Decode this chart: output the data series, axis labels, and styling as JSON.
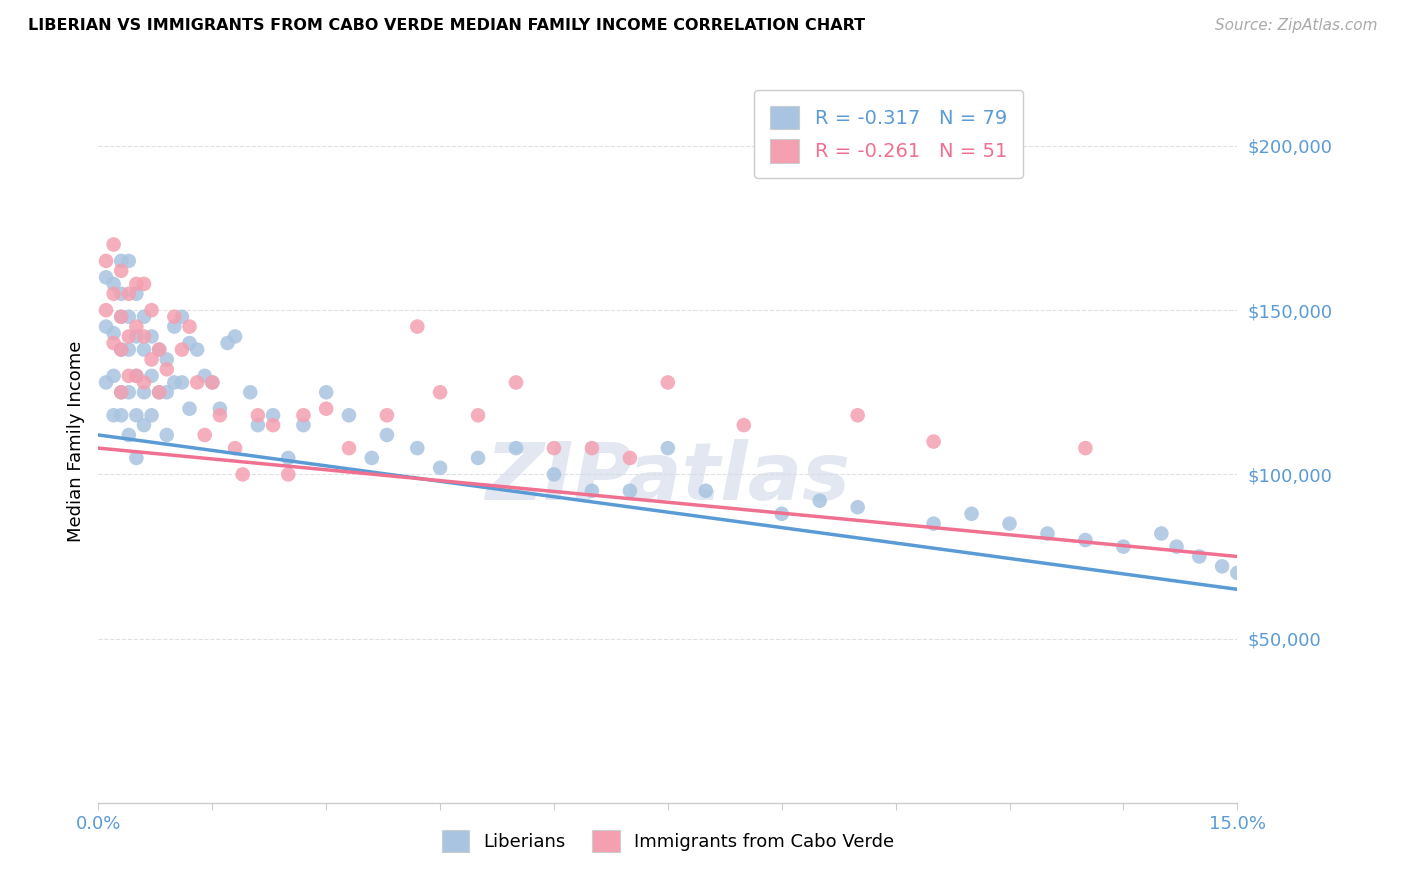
{
  "title": "LIBERIAN VS IMMIGRANTS FROM CABO VERDE MEDIAN FAMILY INCOME CORRELATION CHART",
  "source": "Source: ZipAtlas.com",
  "ylabel": "Median Family Income",
  "xlim": [
    0.0,
    0.15
  ],
  "ylim": [
    0,
    220000
  ],
  "yticks": [
    50000,
    100000,
    150000,
    200000
  ],
  "ytick_labels": [
    "$50,000",
    "$100,000",
    "$150,000",
    "$200,000"
  ],
  "xticks": [
    0.0,
    0.015,
    0.03,
    0.045,
    0.06,
    0.075,
    0.09,
    0.105,
    0.12,
    0.135,
    0.15
  ],
  "xtick_labels": [
    "0.0%",
    "",
    "",
    "",
    "",
    "",
    "",
    "",
    "",
    "",
    "15.0%"
  ],
  "background_color": "#ffffff",
  "grid_color": "#e0e0e0",
  "blue_line_color": "#5b9bd5",
  "pink_line_color": "#f07090",
  "blue_dot_color": "#a8c4e0",
  "pink_dot_color": "#f4a0b0",
  "R_blue": -0.317,
  "N_blue": 79,
  "R_pink": -0.261,
  "N_pink": 51,
  "legend_label_blue": "Liberians",
  "legend_label_pink": "Immigrants from Cabo Verde",
  "watermark": "ZIPatlas",
  "blue_scatter_x": [
    0.001,
    0.001,
    0.001,
    0.002,
    0.002,
    0.002,
    0.002,
    0.003,
    0.003,
    0.003,
    0.003,
    0.003,
    0.003,
    0.004,
    0.004,
    0.004,
    0.004,
    0.004,
    0.005,
    0.005,
    0.005,
    0.005,
    0.005,
    0.006,
    0.006,
    0.006,
    0.006,
    0.007,
    0.007,
    0.007,
    0.008,
    0.008,
    0.009,
    0.009,
    0.009,
    0.01,
    0.01,
    0.011,
    0.011,
    0.012,
    0.012,
    0.013,
    0.014,
    0.015,
    0.016,
    0.017,
    0.018,
    0.02,
    0.021,
    0.023,
    0.025,
    0.027,
    0.03,
    0.033,
    0.036,
    0.038,
    0.042,
    0.045,
    0.05,
    0.055,
    0.06,
    0.065,
    0.07,
    0.075,
    0.08,
    0.09,
    0.095,
    0.1,
    0.11,
    0.115,
    0.12,
    0.125,
    0.13,
    0.135,
    0.14,
    0.142,
    0.145,
    0.148,
    0.15
  ],
  "blue_scatter_y": [
    160000,
    145000,
    128000,
    158000,
    143000,
    130000,
    118000,
    165000,
    155000,
    148000,
    138000,
    125000,
    118000,
    165000,
    148000,
    138000,
    125000,
    112000,
    155000,
    142000,
    130000,
    118000,
    105000,
    148000,
    138000,
    125000,
    115000,
    142000,
    130000,
    118000,
    138000,
    125000,
    135000,
    125000,
    112000,
    145000,
    128000,
    148000,
    128000,
    140000,
    120000,
    138000,
    130000,
    128000,
    120000,
    140000,
    142000,
    125000,
    115000,
    118000,
    105000,
    115000,
    125000,
    118000,
    105000,
    112000,
    108000,
    102000,
    105000,
    108000,
    100000,
    95000,
    95000,
    108000,
    95000,
    88000,
    92000,
    90000,
    85000,
    88000,
    85000,
    82000,
    80000,
    78000,
    82000,
    78000,
    75000,
    72000,
    70000
  ],
  "pink_scatter_x": [
    0.001,
    0.001,
    0.002,
    0.002,
    0.002,
    0.003,
    0.003,
    0.003,
    0.003,
    0.004,
    0.004,
    0.004,
    0.005,
    0.005,
    0.005,
    0.006,
    0.006,
    0.006,
    0.007,
    0.007,
    0.008,
    0.008,
    0.009,
    0.01,
    0.011,
    0.012,
    0.013,
    0.014,
    0.015,
    0.016,
    0.018,
    0.019,
    0.021,
    0.023,
    0.025,
    0.027,
    0.03,
    0.033,
    0.038,
    0.042,
    0.045,
    0.05,
    0.055,
    0.06,
    0.065,
    0.07,
    0.075,
    0.085,
    0.1,
    0.11,
    0.13
  ],
  "pink_scatter_y": [
    165000,
    150000,
    170000,
    155000,
    140000,
    162000,
    148000,
    138000,
    125000,
    155000,
    142000,
    130000,
    158000,
    145000,
    130000,
    158000,
    142000,
    128000,
    150000,
    135000,
    138000,
    125000,
    132000,
    148000,
    138000,
    145000,
    128000,
    112000,
    128000,
    118000,
    108000,
    100000,
    118000,
    115000,
    100000,
    118000,
    120000,
    108000,
    118000,
    145000,
    125000,
    118000,
    128000,
    108000,
    108000,
    105000,
    128000,
    115000,
    118000,
    110000,
    108000
  ]
}
